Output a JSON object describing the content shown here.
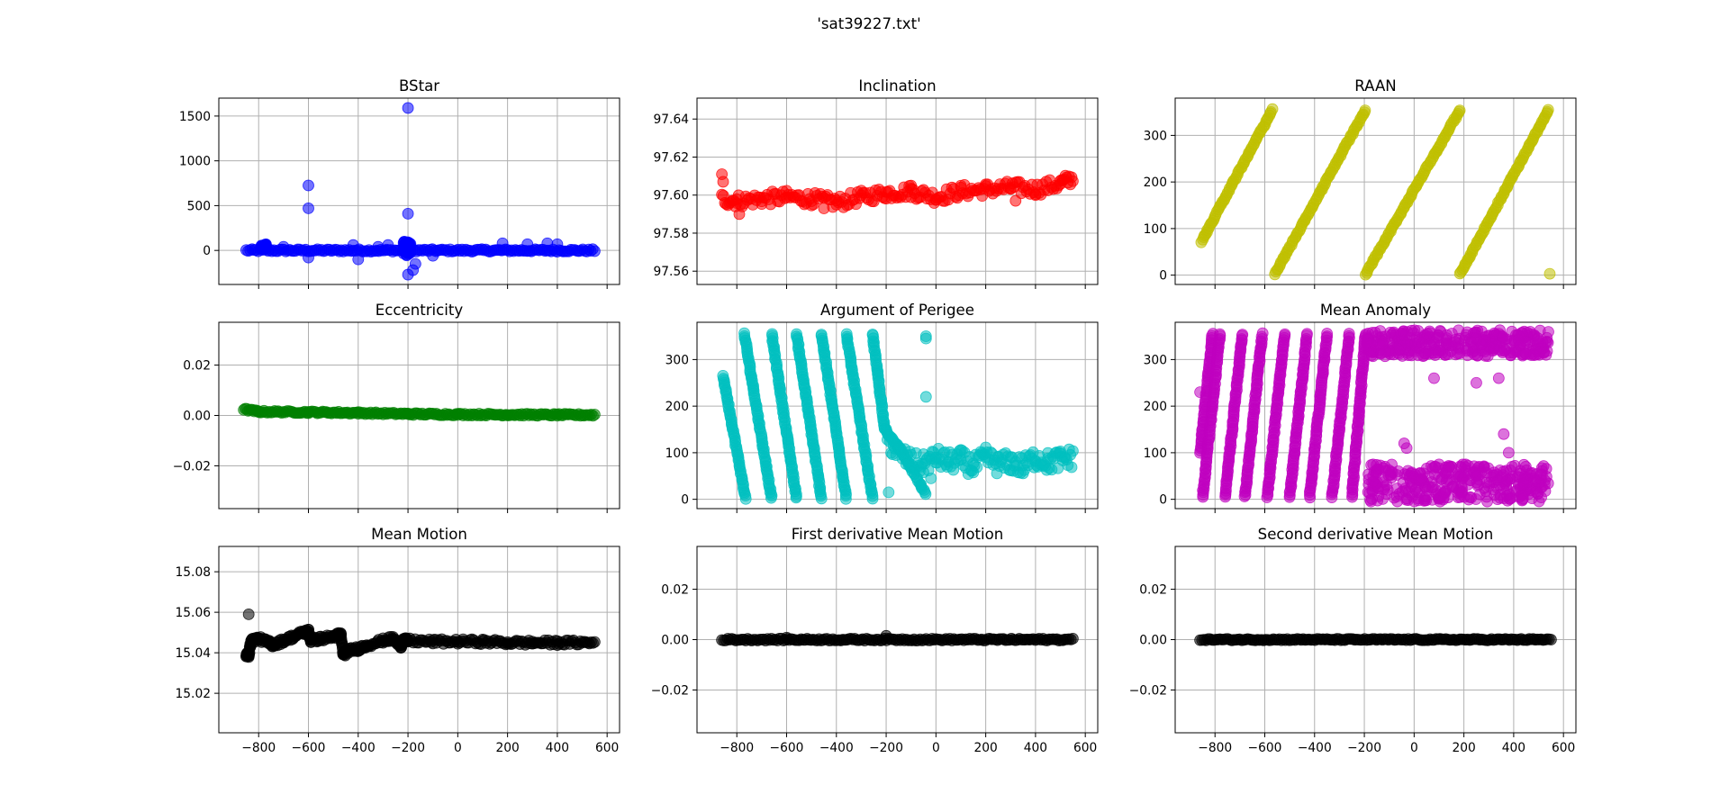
{
  "figure": {
    "suptitle": "'sat39227.txt'"
  },
  "chart_data": [
    {
      "type": "scatter",
      "title": "BStar",
      "color": "#0000ff",
      "xlim": [
        -960,
        650
      ],
      "ylim": [
        -380,
        1700
      ],
      "yticks": [
        0,
        500,
        1000,
        1500
      ],
      "xticks": [
        -800,
        -600,
        -400,
        -200,
        0,
        200,
        400,
        600
      ],
      "show_xticklabels": false,
      "grid": true,
      "segments": [
        {
          "x": [
            -850,
            550
          ],
          "y": [
            0,
            0
          ],
          "spread": 14
        },
        {
          "x": [
            -790,
            -770
          ],
          "y": [
            35,
            50
          ],
          "spread": 20
        },
        {
          "x": [
            -220,
            -190
          ],
          "y": [
            20,
            20
          ],
          "spread": 80
        }
      ],
      "points": [
        {
          "x": -600,
          "y": 725
        },
        {
          "x": -600,
          "y": 470
        },
        {
          "x": -200,
          "y": 1590
        },
        {
          "x": -200,
          "y": 410
        },
        {
          "x": -600,
          "y": -80
        },
        {
          "x": -400,
          "y": -100
        },
        {
          "x": -200,
          "y": -270
        },
        {
          "x": -180,
          "y": -220
        },
        {
          "x": -170,
          "y": -150
        },
        {
          "x": -100,
          "y": -60
        },
        {
          "x": 180,
          "y": 80
        },
        {
          "x": 280,
          "y": 70
        },
        {
          "x": 360,
          "y": 80
        },
        {
          "x": 400,
          "y": 70
        },
        {
          "x": -280,
          "y": 60
        },
        {
          "x": -320,
          "y": 40
        },
        {
          "x": -420,
          "y": 60
        },
        {
          "x": -700,
          "y": 40
        }
      ]
    },
    {
      "type": "scatter",
      "title": "Inclination",
      "color": "#ff0000",
      "xlim": [
        -960,
        650
      ],
      "ylim": [
        97.553,
        97.651
      ],
      "yticks": [
        97.56,
        97.58,
        97.6,
        97.62,
        97.64
      ],
      "ytick_labels": [
        "97.56",
        "97.58",
        "97.60",
        "97.62",
        "97.64"
      ],
      "xticks": [
        -800,
        -600,
        -400,
        -200,
        0,
        200,
        400,
        600
      ],
      "show_xticklabels": false,
      "grid": true,
      "curve": {
        "x": [
          -860,
          -800,
          -700,
          -600,
          -500,
          -400,
          -300,
          -200,
          -100,
          0,
          100,
          200,
          300,
          400,
          500,
          550
        ],
        "y": [
          97.598,
          97.597,
          97.598,
          97.599,
          97.598,
          97.596,
          97.599,
          97.601,
          97.602,
          97.599,
          97.602,
          97.603,
          97.604,
          97.603,
          97.606,
          97.609
        ]
      },
      "spread": 0.0035,
      "points": [
        {
          "x": -860,
          "y": 97.611
        },
        {
          "x": -855,
          "y": 97.607
        },
        {
          "x": -790,
          "y": 97.59
        },
        {
          "x": -100,
          "y": 97.605
        },
        {
          "x": 320,
          "y": 97.597
        },
        {
          "x": -450,
          "y": 97.593
        }
      ]
    },
    {
      "type": "scatter",
      "title": "RAAN",
      "color": "#bfbf00",
      "xlim": [
        -960,
        650
      ],
      "ylim": [
        -20,
        380
      ],
      "yticks": [
        0,
        100,
        200,
        300
      ],
      "xticks": [
        -800,
        -600,
        -400,
        -200,
        0,
        200,
        400,
        600
      ],
      "show_xticklabels": false,
      "grid": true,
      "lines": [
        {
          "x": [
            -855,
            -570
          ],
          "y": [
            72,
            355
          ]
        },
        {
          "x": [
            -560,
            -195
          ],
          "y": [
            2,
            355
          ]
        },
        {
          "x": [
            -195,
            185
          ],
          "y": [
            2,
            355
          ]
        },
        {
          "x": [
            185,
            540
          ],
          "y": [
            2,
            355
          ]
        }
      ],
      "points": [
        {
          "x": 545,
          "y": 3
        }
      ]
    },
    {
      "type": "scatter",
      "title": "Eccentricity",
      "color": "#008000",
      "xlim": [
        -960,
        650
      ],
      "ylim": [
        -0.037,
        0.037
      ],
      "yticks": [
        -0.02,
        0.0,
        0.02
      ],
      "ytick_labels": [
        "−0.02",
        "0.00",
        "0.02"
      ],
      "xticks": [
        -800,
        -600,
        -400,
        -200,
        0,
        200,
        400,
        600
      ],
      "show_xticklabels": false,
      "grid": true,
      "curve": {
        "x": [
          -860,
          -800,
          -600,
          -400,
          -200,
          0,
          200,
          400,
          550
        ],
        "y": [
          0.0025,
          0.0015,
          0.0013,
          0.001,
          0.0006,
          0.0004,
          0.0003,
          0.0002,
          0.0002
        ]
      },
      "spread": 0.0004
    },
    {
      "type": "scatter",
      "title": "Argument of Perigee",
      "color": "#00bfbf",
      "xlim": [
        -960,
        650
      ],
      "ylim": [
        -20,
        380
      ],
      "yticks": [
        0,
        100,
        200,
        300
      ],
      "xticks": [
        -800,
        -600,
        -400,
        -200,
        0,
        200,
        400,
        600
      ],
      "show_xticklabels": false,
      "grid": true,
      "lines": [
        {
          "x": [
            -855,
            -765
          ],
          "y": [
            265,
            2
          ]
        },
        {
          "x": [
            -770,
            -660
          ],
          "y": [
            355,
            2
          ]
        },
        {
          "x": [
            -660,
            -560
          ],
          "y": [
            355,
            2
          ]
        },
        {
          "x": [
            -560,
            -460
          ],
          "y": [
            355,
            2
          ]
        },
        {
          "x": [
            -460,
            -360
          ],
          "y": [
            355,
            2
          ]
        },
        {
          "x": [
            -360,
            -255
          ],
          "y": [
            355,
            2
          ]
        },
        {
          "x": [
            -255,
            -205
          ],
          "y": [
            355,
            150
          ]
        },
        {
          "x": [
            -205,
            -130
          ],
          "y": [
            150,
            95
          ]
        },
        {
          "x": [
            -130,
            -40
          ],
          "y": [
            95,
            10
          ]
        }
      ],
      "curve": {
        "x": [
          -200,
          -150,
          -100,
          -50,
          0,
          50,
          100,
          150,
          200,
          250,
          300,
          350,
          400,
          450,
          500,
          550
        ],
        "y": [
          130,
          100,
          80,
          75,
          90,
          80,
          85,
          70,
          90,
          75,
          80,
          70,
          90,
          80,
          85,
          90
        ]
      },
      "spread": 22,
      "points": [
        {
          "x": -40,
          "y": 350
        },
        {
          "x": -40,
          "y": 345
        },
        {
          "x": -40,
          "y": 220
        },
        {
          "x": -190,
          "y": 15
        },
        {
          "x": -60,
          "y": 30
        },
        {
          "x": -20,
          "y": 45
        }
      ]
    },
    {
      "type": "scatter",
      "title": "Mean Anomaly",
      "color": "#bf00bf",
      "xlim": [
        -960,
        650
      ],
      "ylim": [
        -20,
        380
      ],
      "yticks": [
        0,
        100,
        200,
        300
      ],
      "xticks": [
        -800,
        -600,
        -400,
        -200,
        0,
        200,
        400,
        600
      ],
      "show_xticklabels": false,
      "grid": true,
      "lines": [
        {
          "x": [
            -860,
            -810
          ],
          "y": [
            100,
            355
          ]
        },
        {
          "x": [
            -850,
            -780
          ],
          "y": [
            5,
            355
          ]
        },
        {
          "x": [
            -760,
            -690
          ],
          "y": [
            5,
            355
          ]
        },
        {
          "x": [
            -680,
            -610
          ],
          "y": [
            5,
            355
          ]
        },
        {
          "x": [
            -590,
            -520
          ],
          "y": [
            5,
            355
          ]
        },
        {
          "x": [
            -500,
            -430
          ],
          "y": [
            5,
            355
          ]
        },
        {
          "x": [
            -420,
            -350
          ],
          "y": [
            5,
            355
          ]
        },
        {
          "x": [
            -330,
            -260
          ],
          "y": [
            5,
            355
          ]
        },
        {
          "x": [
            -250,
            -195
          ],
          "y": [
            5,
            355
          ]
        }
      ],
      "bands": [
        {
          "x": [
            -190,
            540
          ],
          "y_center": 335,
          "spread": 28
        },
        {
          "x": [
            -190,
            540
          ],
          "y_center": 35,
          "spread": 40
        }
      ],
      "points": [
        {
          "x": -40,
          "y": 120
        },
        {
          "x": -30,
          "y": 110
        },
        {
          "x": 360,
          "y": 140
        },
        {
          "x": 380,
          "y": 100
        },
        {
          "x": 80,
          "y": 260
        },
        {
          "x": 250,
          "y": 250
        },
        {
          "x": 340,
          "y": 260
        },
        {
          "x": 530,
          "y": 310
        },
        {
          "x": -860,
          "y": 230
        }
      ]
    },
    {
      "type": "scatter",
      "title": "Mean Motion",
      "color": "#000000",
      "xlim": [
        -960,
        650
      ],
      "ylim": [
        15.0005,
        15.0925
      ],
      "yticks": [
        15.02,
        15.04,
        15.06,
        15.08
      ],
      "ytick_labels": [
        "15.02",
        "15.04",
        "15.06",
        "15.08"
      ],
      "xticks": [
        -800,
        -600,
        -400,
        -200,
        0,
        200,
        400,
        600
      ],
      "xtick_labels": [
        "−800",
        "−600",
        "−400",
        "−200",
        "0",
        "200",
        "400",
        "600"
      ],
      "show_xticklabels": true,
      "grid": true,
      "curve": {
        "x": [
          -850,
          -840,
          -830,
          -800,
          -760,
          -740,
          -700,
          -660,
          -620,
          -600,
          -590,
          -550,
          -500,
          -470,
          -460,
          -440,
          -400,
          -360,
          -300,
          -260,
          -230,
          -220,
          -200,
          -100,
          0,
          100,
          200,
          300,
          400,
          550
        ],
        "y": [
          15.039,
          15.039,
          15.046,
          15.047,
          15.045,
          15.044,
          15.046,
          15.048,
          15.05,
          15.0505,
          15.046,
          15.047,
          15.048,
          15.049,
          15.039,
          15.041,
          15.042,
          15.044,
          15.046,
          15.047,
          15.043,
          15.046,
          15.046,
          15.0455,
          15.0455,
          15.0455,
          15.045,
          15.045,
          15.045,
          15.045
        ]
      },
      "spread": 0.0012,
      "points": [
        {
          "x": -840,
          "y": 15.059
        }
      ]
    },
    {
      "type": "scatter",
      "title": "First derivative Mean Motion",
      "color": "#000000",
      "xlim": [
        -960,
        650
      ],
      "ylim": [
        -0.037,
        0.037
      ],
      "yticks": [
        -0.02,
        0.0,
        0.02
      ],
      "ytick_labels": [
        "−0.02",
        "0.00",
        "0.02"
      ],
      "xticks": [
        -800,
        -600,
        -400,
        -200,
        0,
        200,
        400,
        600
      ],
      "xtick_labels": [
        "−800",
        "−600",
        "−400",
        "−200",
        "0",
        "200",
        "400",
        "600"
      ],
      "show_xticklabels": true,
      "grid": true,
      "segments": [
        {
          "x": [
            -860,
            550
          ],
          "y": [
            0,
            0
          ],
          "spread": 0.0004
        }
      ],
      "points": [
        {
          "x": -200,
          "y": 0.0015
        },
        {
          "x": -600,
          "y": 0.0008
        }
      ]
    },
    {
      "type": "scatter",
      "title": "Second derivative Mean Motion",
      "color": "#000000",
      "xlim": [
        -960,
        650
      ],
      "ylim": [
        -0.037,
        0.037
      ],
      "yticks": [
        -0.02,
        0.0,
        0.02
      ],
      "ytick_labels": [
        "−0.02",
        "0.00",
        "0.02"
      ],
      "xticks": [
        -800,
        -600,
        -400,
        -200,
        0,
        200,
        400,
        600
      ],
      "xtick_labels": [
        "−800",
        "−600",
        "−400",
        "−200",
        "0",
        "200",
        "400",
        "600"
      ],
      "show_xticklabels": true,
      "grid": true,
      "segments": [
        {
          "x": [
            -860,
            550
          ],
          "y": [
            0,
            0
          ],
          "spread": 0.0003
        }
      ]
    }
  ]
}
